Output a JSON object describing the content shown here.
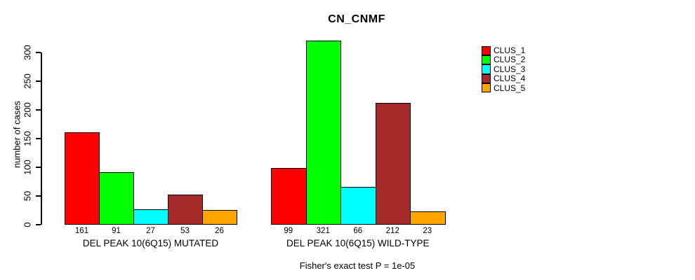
{
  "chart_data": {
    "type": "bar",
    "title": "CN_CNMF",
    "ylabel": "number of cases",
    "ylim": [
      0,
      321
    ],
    "yticks": [
      0,
      50,
      100,
      150,
      200,
      250,
      300
    ],
    "grid": false,
    "legend_position": "right",
    "clusters": [
      {
        "name": "CLUS_1",
        "color": "#ff0000"
      },
      {
        "name": "CLUS_2",
        "color": "#00ff00"
      },
      {
        "name": "CLUS_3",
        "color": "#00ffff"
      },
      {
        "name": "CLUS_4",
        "color": "#a52a2a"
      },
      {
        "name": "CLUS_5",
        "color": "#ffa500"
      }
    ],
    "categories": [
      "DEL PEAK 10(6Q15) MUTATED",
      "DEL PEAK 10(6Q15) WILD-TYPE"
    ],
    "series": [
      {
        "name": "CLUS_1",
        "values": [
          161,
          99
        ]
      },
      {
        "name": "CLUS_2",
        "values": [
          91,
          321
        ]
      },
      {
        "name": "CLUS_3",
        "values": [
          27,
          66
        ]
      },
      {
        "name": "CLUS_4",
        "values": [
          53,
          212
        ]
      },
      {
        "name": "CLUS_5",
        "values": [
          26,
          23
        ]
      }
    ],
    "bar_value_labels": [
      [
        161,
        91,
        27,
        53,
        26
      ],
      [
        99,
        321,
        66,
        212,
        23
      ]
    ],
    "footnote": "Fisher's exact test P = 1e-05"
  }
}
